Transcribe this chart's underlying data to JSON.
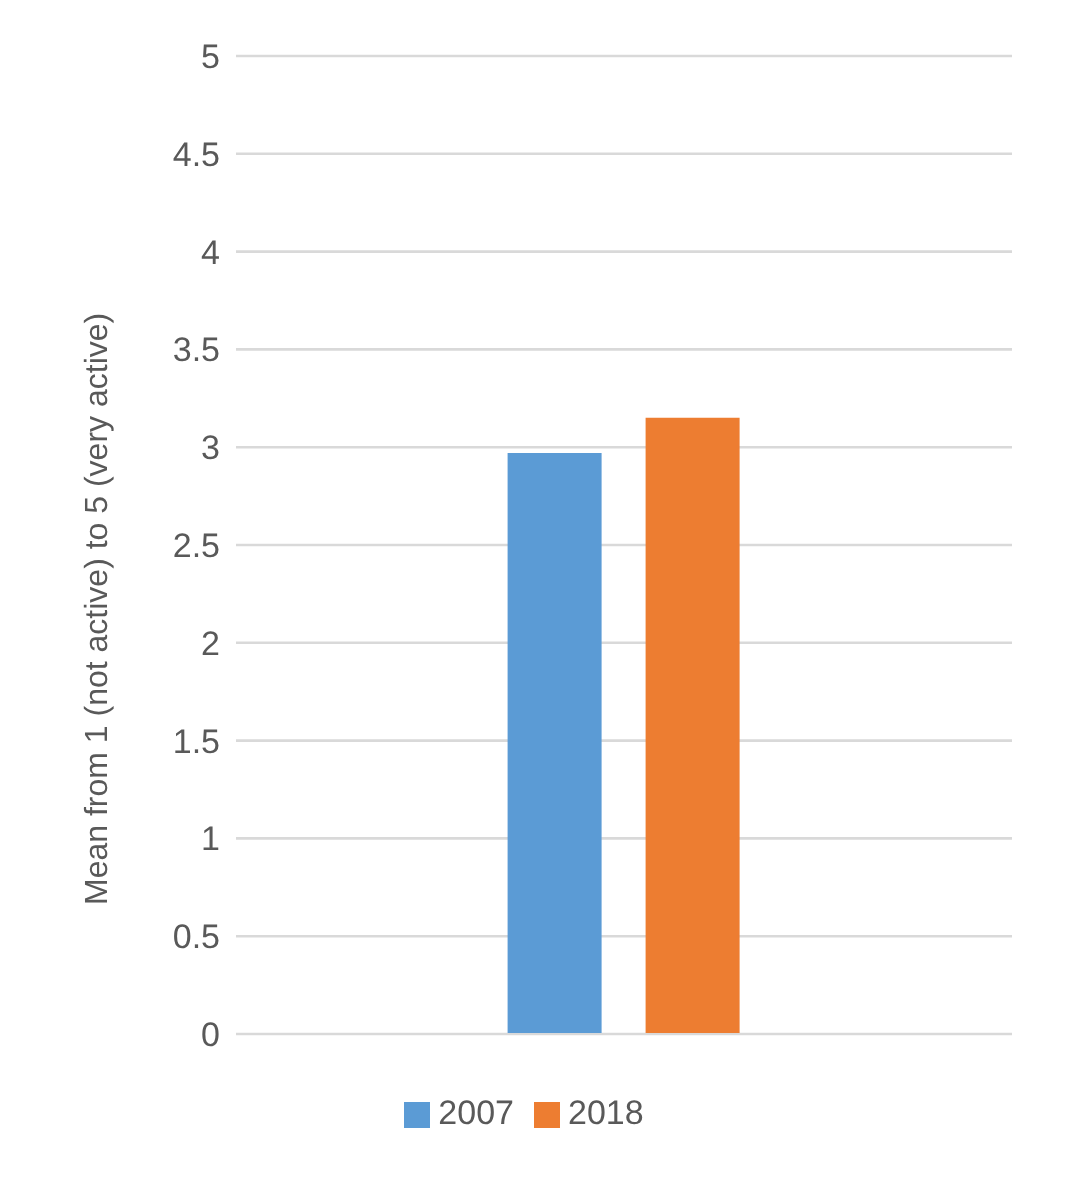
{
  "chart_data": {
    "type": "bar",
    "ylabel": "Mean from 1 (not active) to 5 (very active)",
    "categories": [
      null
    ],
    "series": [
      {
        "name": "2007",
        "color": "#5b9bd5",
        "values": [
          2.97
        ]
      },
      {
        "name": "2018",
        "color": "#ed7d31",
        "values": [
          3.15
        ]
      }
    ],
    "ylim": [
      0,
      5
    ],
    "yticks": [
      0,
      0.5,
      1,
      1.5,
      2,
      2.5,
      3,
      3.5,
      4,
      4.5,
      5
    ],
    "grid": "y",
    "legend": "bottom"
  }
}
